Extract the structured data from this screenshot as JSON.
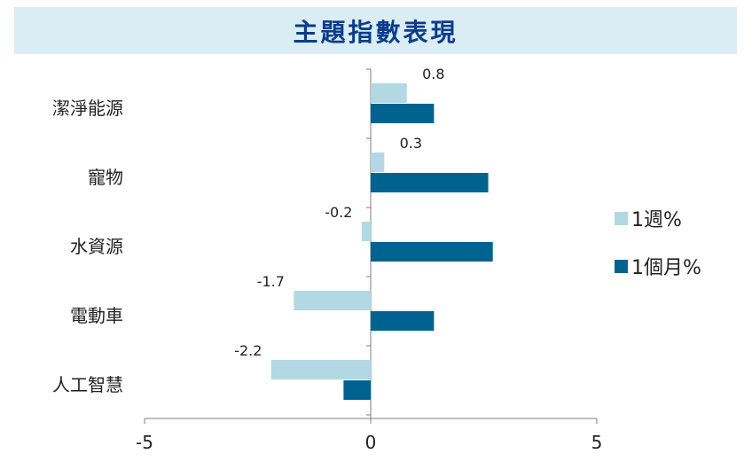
{
  "title": "主題指數表現",
  "chart_data": {
    "type": "bar",
    "orientation": "horizontal",
    "categories": [
      "潔淨能源",
      "寵物",
      "水資源",
      "電動車",
      "人工智慧"
    ],
    "series": [
      {
        "name": "1週%",
        "values": [
          0.8,
          0.3,
          -0.2,
          -1.7,
          -2.2
        ],
        "color": "#b2d8e3"
      },
      {
        "name": "1個月%",
        "values": [
          1.4,
          2.6,
          2.7,
          1.4,
          -0.6
        ],
        "color": "#00628f"
      }
    ],
    "data_labels": [
      "0.8",
      "0.3",
      "-0.2",
      "-1.7",
      "-2.2"
    ],
    "xlim": [
      -5,
      5
    ],
    "xticks": [
      "-5",
      "0",
      "5"
    ],
    "legend_position": "right",
    "grid": false
  }
}
